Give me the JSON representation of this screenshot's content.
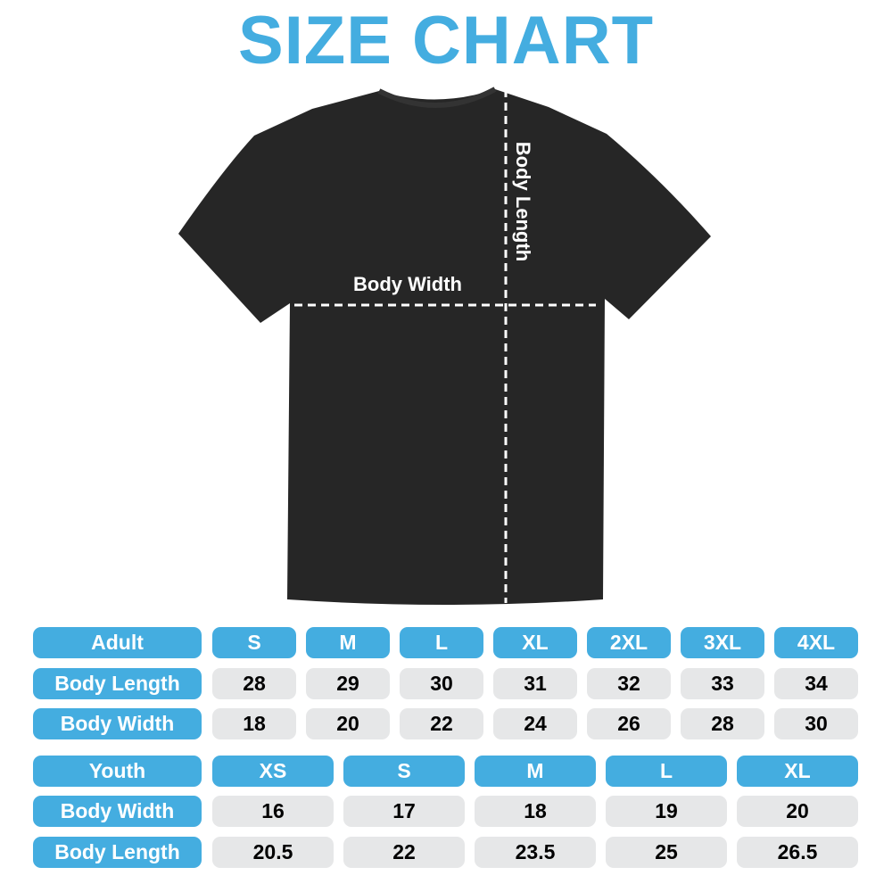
{
  "title": "SIZE CHART",
  "diagram": {
    "width_label": "Body Width",
    "length_label": "Body Length"
  },
  "colors": {
    "accent": "#44ade0",
    "cell_bg": "#e6e7e8",
    "shirt": "#262626"
  },
  "adult": {
    "header": "Adult",
    "sizes": [
      "S",
      "M",
      "L",
      "XL",
      "2XL",
      "3XL",
      "4XL"
    ],
    "rows": [
      {
        "label": "Body Length",
        "values": [
          "28",
          "29",
          "30",
          "31",
          "32",
          "33",
          "34"
        ]
      },
      {
        "label": "Body Width",
        "values": [
          "18",
          "20",
          "22",
          "24",
          "26",
          "28",
          "30"
        ]
      }
    ]
  },
  "youth": {
    "header": "Youth",
    "sizes": [
      "XS",
      "S",
      "M",
      "L",
      "XL"
    ],
    "rows": [
      {
        "label": "Body Width",
        "values": [
          "16",
          "17",
          "18",
          "19",
          "20"
        ]
      },
      {
        "label": "Body Length",
        "values": [
          "20.5",
          "22",
          "23.5",
          "25",
          "26.5"
        ]
      }
    ]
  }
}
